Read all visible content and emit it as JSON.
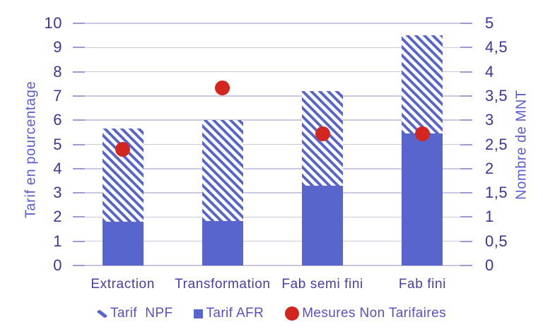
{
  "chart_data": {
    "type": "bar",
    "subtype": "stacked-bars-with-point-overlay",
    "title": "",
    "categories": [
      "Extraction",
      "Transformation",
      "Fab semi fini",
      "Fab fini"
    ],
    "series": [
      {
        "name": "Tarif AFR",
        "kind": "bar-solid",
        "axis": "left",
        "values": [
          1.8,
          1.85,
          3.3,
          5.45
        ]
      },
      {
        "name": "Tarif NPF",
        "kind": "bar-hatched",
        "axis": "left",
        "values": [
          3.85,
          4.15,
          3.9,
          4.05
        ]
      },
      {
        "name": "Mesures Non Tarifaires",
        "kind": "point",
        "axis": "right",
        "values": [
          2.4,
          3.67,
          2.72,
          2.72
        ]
      }
    ],
    "stacked_totals_left_axis": [
      5.65,
      6.0,
      7.2,
      9.5
    ],
    "left_axis": {
      "label": "Tarif en pourcentage",
      "min": 0,
      "max": 10,
      "step": 1,
      "tick_labels": [
        "0",
        "1",
        "2",
        "3",
        "4",
        "5",
        "6",
        "7",
        "8",
        "9",
        "10"
      ]
    },
    "right_axis": {
      "label": "Nombre de MNT",
      "min": 0,
      "max": 5,
      "step": 0.5,
      "tick_labels": [
        "0",
        "0,5",
        "1",
        "1,5",
        "2",
        "2,5",
        "3",
        "3,5",
        "4",
        "4,5",
        "5"
      ]
    },
    "grid": "horizontal-on",
    "legend": {
      "position": "bottom-center",
      "items": [
        {
          "label": "Tarif  NPF",
          "marker": "hatched-diagonal-stroke"
        },
        {
          "label": "Tarif AFR",
          "marker": "solid-square"
        },
        {
          "label": "Mesures Non Tarifaires",
          "marker": "red-circle"
        }
      ]
    },
    "colors": {
      "bar_blue": "#5865cd",
      "hatch_stripe_blue": "#5865cd",
      "hatch_background": "#ffffff",
      "point_red": "#d3261f",
      "tick_text": "#3d3497",
      "axis_title_text": "#5a5cd0",
      "category_text": "#473daa",
      "legend_text": "#5950c5",
      "gridline": "#c9c9e2",
      "tick_mark": "#9c9cd2",
      "background": "#ffffff"
    }
  }
}
